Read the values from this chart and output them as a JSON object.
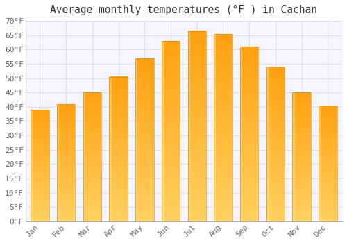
{
  "title": "Average monthly temperatures (°F ) in Cachan",
  "months": [
    "Jan",
    "Feb",
    "Mar",
    "Apr",
    "May",
    "Jun",
    "Jul",
    "Aug",
    "Sep",
    "Oct",
    "Nov",
    "Dec"
  ],
  "values": [
    39,
    41,
    45,
    50.5,
    57,
    63,
    66.5,
    65.5,
    61,
    54,
    45,
    40.5
  ],
  "bar_color_bottom": "#FFD060",
  "bar_color_top": "#FFA010",
  "bar_highlight_left": "#FFE080",
  "background_color": "#FFFFFF",
  "plot_background": "#F5F5FF",
  "grid_color": "#DDDDEE",
  "ylim": [
    0,
    70
  ],
  "ytick_step": 5,
  "title_fontsize": 10.5,
  "tick_fontsize": 8,
  "font_family": "monospace"
}
